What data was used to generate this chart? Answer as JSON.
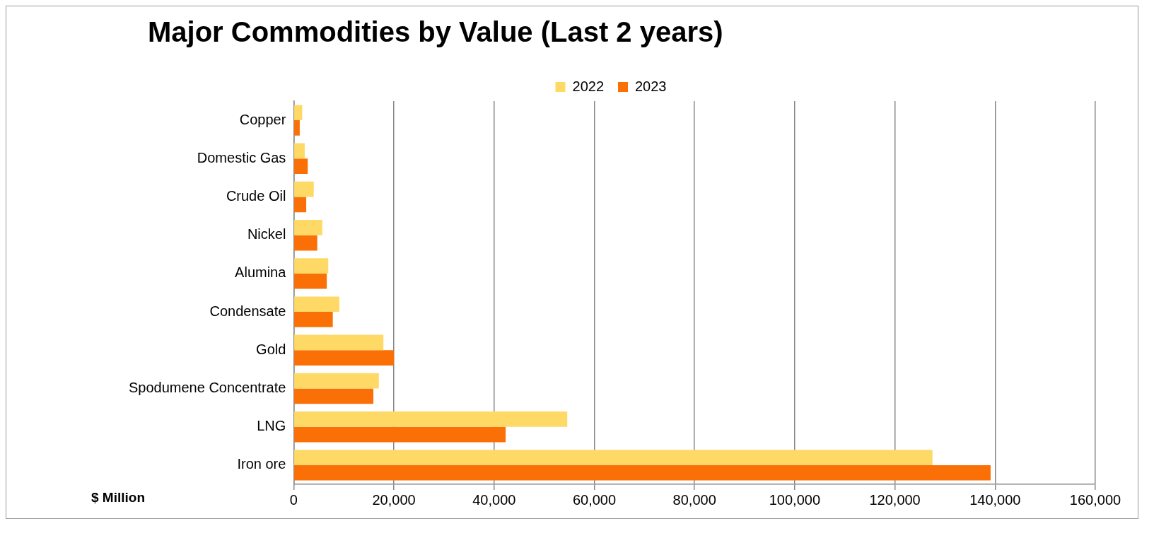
{
  "chart_data": {
    "type": "bar",
    "orientation": "horizontal",
    "title": "Major Commodities by Value (Last 2 years)",
    "xlabel": "$ Million",
    "categories": [
      "Copper",
      "Domestic Gas",
      "Crude Oil",
      "Nickel",
      "Alumina",
      "Condensate",
      "Gold",
      "Spodumene Concentrate",
      "LNG",
      "Iron ore"
    ],
    "series": [
      {
        "name": "2022",
        "color": "#ffd966",
        "values": [
          1700,
          2200,
          4000,
          5700,
          6900,
          9100,
          17900,
          17000,
          54600,
          127500
        ]
      },
      {
        "name": "2023",
        "color": "#fa7006",
        "values": [
          1200,
          2800,
          2500,
          4700,
          6600,
          7800,
          20000,
          15900,
          42300,
          139100
        ]
      }
    ],
    "xlim": [
      0,
      160000
    ],
    "xticks": [
      0,
      {
        "value": 20000,
        "label": "20,000"
      },
      {
        "value": 40000,
        "label": "40,000"
      },
      {
        "value": 60000,
        "label": "60,000"
      },
      {
        "value": 80000,
        "label": "80,000"
      },
      {
        "value": 100000,
        "label": "100,000"
      },
      {
        "value": 120000,
        "label": "120,000"
      },
      {
        "value": 140000,
        "label": "140,000"
      },
      {
        "value": 160000,
        "label": "160,000"
      }
    ],
    "grid": "x",
    "legend": "top"
  }
}
